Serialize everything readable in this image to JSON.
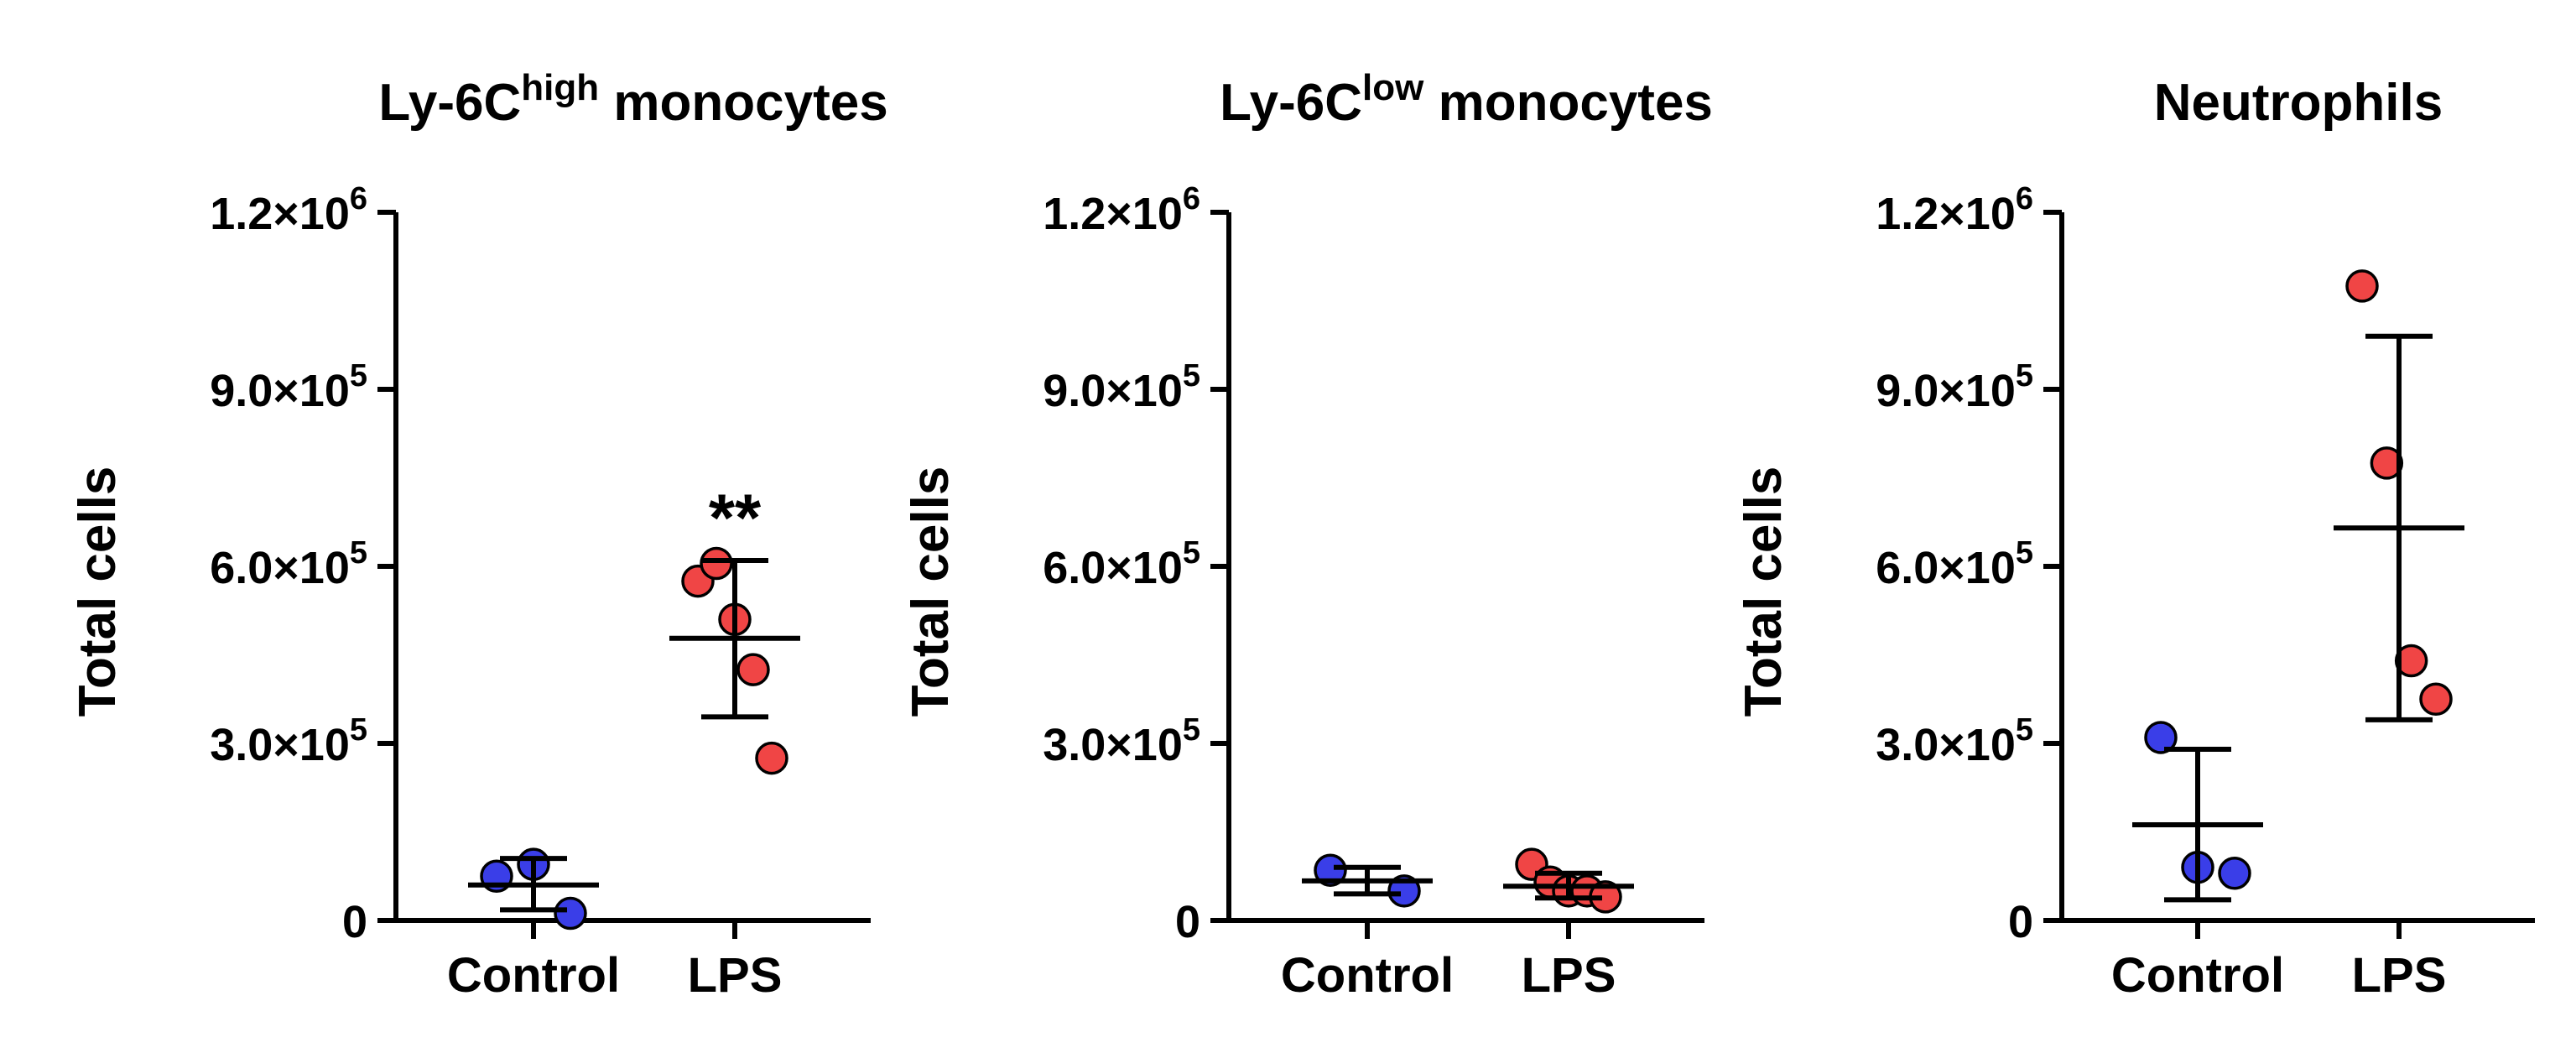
{
  "colors": {
    "control": "#3a3ee8",
    "lps": "#f04545",
    "axis": "#000000"
  },
  "chart_data": [
    {
      "type": "scatter",
      "title": "Ly-6C",
      "title_sup": "high",
      "title_rest": " monocytes",
      "ylabel": "Total cells",
      "ylim": [
        0,
        1200000
      ],
      "yticks": [
        {
          "value": 0,
          "base": "0",
          "exp": ""
        },
        {
          "value": 300000,
          "base": "3.0×10",
          "exp": "5"
        },
        {
          "value": 600000,
          "base": "6.0×10",
          "exp": "5"
        },
        {
          "value": 900000,
          "base": "9.0×10",
          "exp": "5"
        },
        {
          "value": 1200000,
          "base": "1.2×10",
          "exp": "6"
        }
      ],
      "categories": [
        "Control",
        "LPS"
      ],
      "series": [
        {
          "name": "Control",
          "points": [
            75000,
            95000,
            12000
          ],
          "mean": 60000,
          "sd_low": 18000,
          "sd_high": 105000
        },
        {
          "name": "LPS",
          "points": [
            575000,
            605000,
            510000,
            425000,
            275000
          ],
          "mean": 478000,
          "sd_low": 345000,
          "sd_high": 610000
        }
      ],
      "annotation": {
        "text": "**",
        "category": "LPS",
        "value": 700000
      }
    },
    {
      "type": "scatter",
      "title": "Ly-6C",
      "title_sup": "low",
      "title_rest": " monocytes",
      "ylabel": "Total cells",
      "ylim": [
        0,
        1200000
      ],
      "yticks": [
        {
          "value": 0,
          "base": "0",
          "exp": ""
        },
        {
          "value": 300000,
          "base": "3.0×10",
          "exp": "5"
        },
        {
          "value": 600000,
          "base": "6.0×10",
          "exp": "5"
        },
        {
          "value": 900000,
          "base": "9.0×10",
          "exp": "5"
        },
        {
          "value": 1200000,
          "base": "1.2×10",
          "exp": "6"
        }
      ],
      "categories": [
        "Control",
        "LPS"
      ],
      "series": [
        {
          "name": "Control",
          "points": [
            85000,
            50000
          ],
          "mean": 67000,
          "sd_low": 45000,
          "sd_high": 90000
        },
        {
          "name": "LPS",
          "points": [
            95000,
            65000,
            50000,
            50000,
            40000
          ],
          "mean": 58000,
          "sd_low": 38000,
          "sd_high": 80000
        }
      ],
      "annotation": null
    },
    {
      "type": "scatter",
      "title": "Neutrophils",
      "title_sup": "",
      "title_rest": "",
      "ylabel": "Total cells",
      "ylim": [
        0,
        1200000
      ],
      "yticks": [
        {
          "value": 0,
          "base": "0",
          "exp": ""
        },
        {
          "value": 300000,
          "base": "3.0×10",
          "exp": "5"
        },
        {
          "value": 600000,
          "base": "6.0×10",
          "exp": "5"
        },
        {
          "value": 900000,
          "base": "9.0×10",
          "exp": "5"
        },
        {
          "value": 1200000,
          "base": "1.2×10",
          "exp": "6"
        }
      ],
      "categories": [
        "Control",
        "LPS"
      ],
      "series": [
        {
          "name": "Control",
          "points": [
            310000,
            90000,
            80000
          ],
          "mean": 162000,
          "sd_low": 35000,
          "sd_high": 290000
        },
        {
          "name": "LPS",
          "points": [
            1075000,
            775000,
            440000,
            375000
          ],
          "mean": 665000,
          "sd_low": 340000,
          "sd_high": 990000
        }
      ],
      "annotation": null
    }
  ]
}
